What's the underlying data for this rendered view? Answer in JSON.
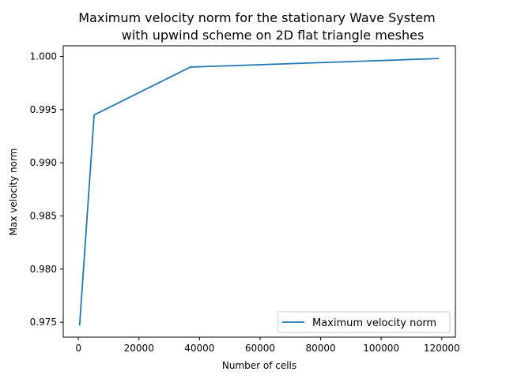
{
  "chart_data": {
    "type": "line",
    "title_line1": "Maximum velocity norm for the stationary Wave System",
    "title_line2": "with upwind scheme on 2D flat triangle meshes",
    "xlabel": "Number of cells",
    "ylabel": "Max velocity norm",
    "xlim": [
      -5000,
      124500
    ],
    "ylim": [
      0.9736,
      1.001
    ],
    "xticks": [
      0,
      20000,
      40000,
      60000,
      80000,
      100000,
      120000
    ],
    "xtick_labels": [
      "0",
      "20000",
      "40000",
      "60000",
      "80000",
      "100000",
      "120000"
    ],
    "yticks": [
      0.975,
      0.98,
      0.985,
      0.99,
      0.995,
      1.0
    ],
    "ytick_labels": [
      "0.975",
      "0.980",
      "0.985",
      "0.990",
      "0.995",
      "1.000"
    ],
    "grid": false,
    "legend_position": "lower-right",
    "series": [
      {
        "name": "Maximum velocity norm",
        "color": "#1f77b4",
        "x": [
          400,
          5200,
          37000,
          119000
        ],
        "y": [
          0.9747,
          0.9945,
          0.999,
          0.9998
        ]
      }
    ]
  }
}
